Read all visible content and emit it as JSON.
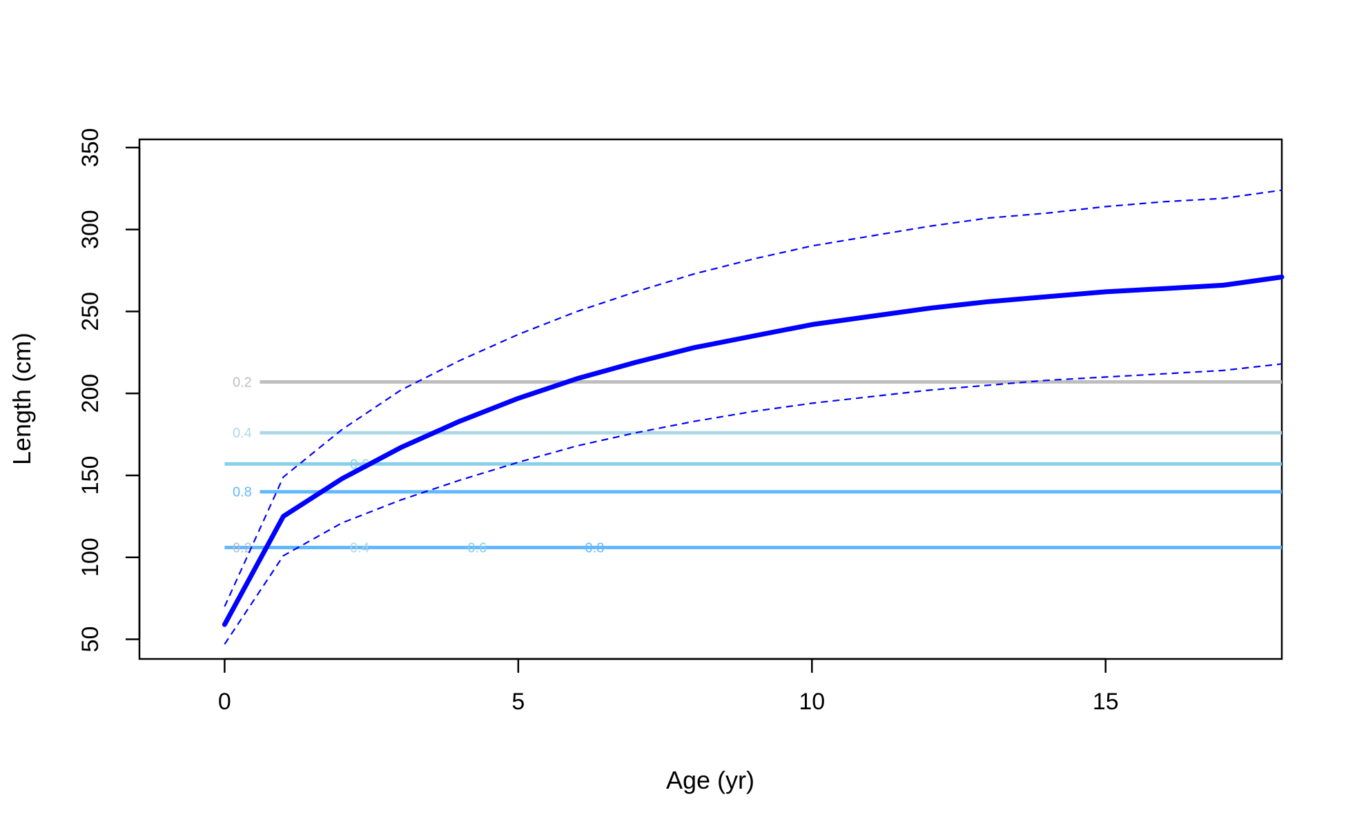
{
  "chart_data": {
    "type": "line",
    "xlabel": "Age (yr)",
    "ylabel": "Length (cm)",
    "xlim": [
      -1.45,
      18.0
    ],
    "ylim": [
      38,
      355
    ],
    "xticks": [
      0,
      5,
      10,
      15
    ],
    "yticks": [
      50,
      100,
      150,
      200,
      250,
      300,
      350
    ],
    "grid": false,
    "series": [
      {
        "role": "mean",
        "color": "#0000ff",
        "style": "solid",
        "x": [
          0,
          1,
          2,
          3,
          4,
          5,
          6,
          7,
          8,
          9,
          10,
          11,
          12,
          13,
          14,
          15,
          16,
          17,
          18
        ],
        "y": [
          59,
          125,
          148,
          167,
          183,
          197,
          209,
          219,
          228,
          235,
          242,
          247,
          252,
          256,
          259,
          262,
          264,
          266,
          271
        ]
      },
      {
        "role": "upper",
        "color": "#0000ff",
        "style": "dashed",
        "x": [
          0,
          1,
          2,
          3,
          4,
          5,
          6,
          7,
          8,
          9,
          10,
          11,
          12,
          13,
          14,
          15,
          16,
          17,
          18
        ],
        "y": [
          70,
          149,
          178,
          202,
          220,
          236,
          250,
          262,
          273,
          282,
          290,
          296,
          302,
          307,
          310,
          314,
          317,
          319,
          324
        ]
      },
      {
        "role": "lower",
        "color": "#0000ff",
        "style": "dashed",
        "x": [
          0,
          1,
          2,
          3,
          4,
          5,
          6,
          7,
          8,
          9,
          10,
          11,
          12,
          13,
          14,
          15,
          16,
          17,
          18
        ],
        "y": [
          47,
          101,
          121,
          135,
          147,
          158,
          168,
          176,
          183,
          189,
          194,
          198,
          202,
          205,
          208,
          210,
          212,
          214,
          218
        ]
      }
    ],
    "bands": [
      {
        "y": 207,
        "x0": 0.6,
        "x1": 18,
        "color": "#bebebe",
        "labels": [
          {
            "x": 0.3,
            "text": "0.2",
            "color": "#bebebe"
          }
        ]
      },
      {
        "y": 176,
        "x0": 0.6,
        "x1": 18,
        "color": "#add8e6",
        "labels": [
          {
            "x": 0.3,
            "text": "0.4",
            "color": "#add8e6"
          }
        ]
      },
      {
        "y": 157,
        "x0": 0.0,
        "x1": 18,
        "color": "#87ceeb",
        "labels": [
          {
            "x": 2.3,
            "text": "0.6",
            "color": "#87ceeb"
          }
        ]
      },
      {
        "y": 140,
        "x0": 0.6,
        "x1": 18,
        "color": "#63b8ff",
        "labels": [
          {
            "x": 0.3,
            "text": "0.8",
            "color": "#63b8ff"
          }
        ]
      },
      {
        "y": 106,
        "x0": 0.0,
        "x1": 18,
        "color": "#63b8ff",
        "labels": [
          {
            "x": 0.3,
            "text": "0.2",
            "color": "#bebebe"
          },
          {
            "x": 2.3,
            "text": "0.4",
            "color": "#add8e6"
          },
          {
            "x": 4.3,
            "text": "0.6",
            "color": "#87ceeb"
          },
          {
            "x": 6.3,
            "text": "0.8",
            "color": "#63b8ff"
          }
        ]
      }
    ]
  }
}
